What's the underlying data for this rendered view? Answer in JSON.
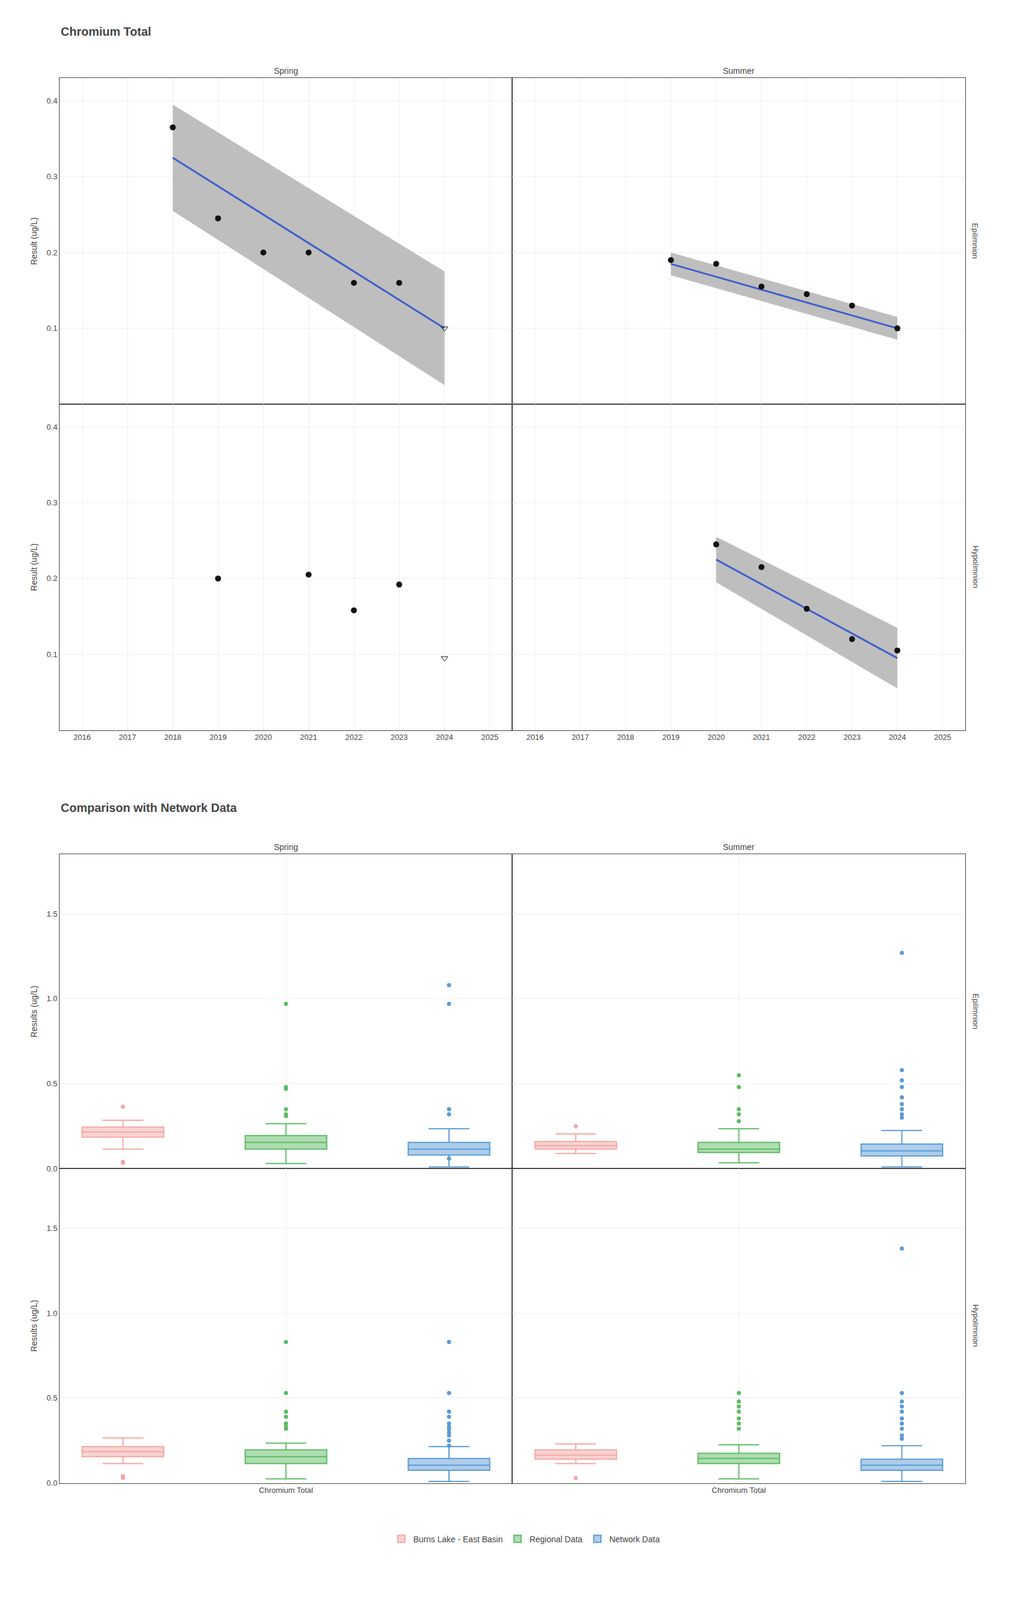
{
  "chart_data": [
    {
      "type": "scatter",
      "title": "Chromium Total",
      "y_label": "Result (ug/L)",
      "xlim": [
        2015.5,
        2025.5
      ],
      "xticks": [
        2016,
        2017,
        2018,
        2019,
        2020,
        2021,
        2022,
        2023,
        2024,
        2025
      ],
      "ylim": [
        0.0,
        0.43
      ],
      "yticks": [
        0.1,
        0.2,
        0.3,
        0.4
      ],
      "grid": true,
      "columns": [
        "Spring",
        "Summer"
      ],
      "rows": [
        "Epilimnion",
        "Hypolimnion"
      ],
      "panels": [
        {
          "series": [
            {
              "type": "band",
              "color": "#BEBEBE",
              "x": [
                2018,
                2024
              ],
              "upper": [
                0.395,
                0.175
              ],
              "lower": [
                0.255,
                0.025
              ]
            },
            {
              "type": "line",
              "color": "#3C5FCC",
              "x": [
                2018,
                2024
              ],
              "values": [
                0.325,
                0.1
              ]
            },
            {
              "type": "scatter",
              "marker": "circle",
              "color": "#111111",
              "x": [
                2018,
                2019,
                2020,
                2021,
                2022,
                2023
              ],
              "values": [
                0.365,
                0.245,
                0.2,
                0.2,
                0.16,
                0.16
              ]
            },
            {
              "type": "scatter",
              "marker": "triangle-down-open",
              "color": "#111111",
              "x": [
                2024
              ],
              "values": [
                0.1
              ]
            }
          ]
        },
        {
          "series": [
            {
              "type": "band",
              "color": "#BEBEBE",
              "x": [
                2019,
                2024
              ],
              "upper": [
                0.2,
                0.115
              ],
              "lower": [
                0.17,
                0.085
              ]
            },
            {
              "type": "line",
              "color": "#3C5FCC",
              "x": [
                2019,
                2024
              ],
              "values": [
                0.185,
                0.1
              ]
            },
            {
              "type": "scatter",
              "marker": "circle",
              "color": "#111111",
              "x": [
                2019,
                2020,
                2021,
                2022,
                2023,
                2024
              ],
              "values": [
                0.19,
                0.185,
                0.155,
                0.145,
                0.13,
                0.1
              ]
            }
          ]
        },
        {
          "series": [
            {
              "type": "scatter",
              "marker": "circle",
              "color": "#111111",
              "x": [
                2019,
                2021,
                2022,
                2023
              ],
              "values": [
                0.2,
                0.205,
                0.158,
                0.192
              ]
            },
            {
              "type": "scatter",
              "marker": "triangle-down-open",
              "color": "#111111",
              "x": [
                2024
              ],
              "values": [
                0.095
              ]
            }
          ]
        },
        {
          "series": [
            {
              "type": "band",
              "color": "#BEBEBE",
              "x": [
                2020,
                2024
              ],
              "upper": [
                0.255,
                0.135
              ],
              "lower": [
                0.195,
                0.055
              ]
            },
            {
              "type": "line",
              "color": "#3C5FCC",
              "x": [
                2020,
                2024
              ],
              "values": [
                0.225,
                0.095
              ]
            },
            {
              "type": "scatter",
              "marker": "circle",
              "color": "#111111",
              "x": [
                2020,
                2021,
                2022,
                2023,
                2024
              ],
              "values": [
                0.245,
                0.215,
                0.16,
                0.12,
                0.105
              ]
            }
          ]
        }
      ]
    },
    {
      "type": "box",
      "title": "Comparison with Network Data",
      "y_label": "Results (ug/L)",
      "categories": [
        "Chromium Total"
      ],
      "ylim": [
        0.0,
        1.85
      ],
      "yticks": [
        {
          "value": 0.0,
          "label": "0.0"
        },
        0.5,
        {
          "value": 1.0,
          "label": "1.0"
        },
        1.5
      ],
      "grid": true,
      "legend": "bottom",
      "columns": [
        "Spring",
        "Summer"
      ],
      "rows": [
        "Epilimnion",
        "Hypolimnion"
      ],
      "panels": [
        {
          "series": [
            {
              "name": "Burns Lake - East Basin",
              "color": "#F4A8A4",
              "median": 0.215,
              "q1": 0.185,
              "q3": 0.245,
              "whisker_low": 0.115,
              "whisker_high": 0.285,
              "outliers": [
                0.035,
                0.04,
                0.365
              ]
            },
            {
              "name": "Regional Data",
              "color": "#5DBB63",
              "median": 0.155,
              "q1": 0.115,
              "q3": 0.195,
              "whisker_low": 0.03,
              "whisker_high": 0.265,
              "outliers": [
                0.97,
                0.48,
                0.47,
                0.35,
                0.32,
                0.31
              ]
            },
            {
              "name": "Network Data",
              "color": "#5B9BD5",
              "median": 0.115,
              "q1": 0.08,
              "q3": 0.155,
              "whisker_low": 0.01,
              "whisker_high": 0.235,
              "outliers": [
                0.97,
                1.08,
                0.35,
                0.32,
                0.06
              ]
            }
          ]
        },
        {
          "series": [
            {
              "name": "Burns Lake - East Basin",
              "color": "#F4A8A4",
              "median": 0.135,
              "q1": 0.115,
              "q3": 0.16,
              "whisker_low": 0.09,
              "whisker_high": 0.205,
              "outliers": [
                0.25
              ]
            },
            {
              "name": "Regional Data",
              "color": "#5DBB63",
              "median": 0.115,
              "q1": 0.095,
              "q3": 0.155,
              "whisker_low": 0.035,
              "whisker_high": 0.235,
              "outliers": [
                0.55,
                0.48,
                0.35,
                0.32,
                0.28
              ]
            },
            {
              "name": "Network Data",
              "color": "#5B9BD5",
              "median": 0.105,
              "q1": 0.075,
              "q3": 0.145,
              "whisker_low": 0.01,
              "whisker_high": 0.225,
              "outliers": [
                1.27,
                0.58,
                0.52,
                0.48,
                0.42,
                0.38,
                0.35,
                0.32,
                0.3
              ]
            }
          ]
        },
        {
          "series": [
            {
              "name": "Burns Lake - East Basin",
              "color": "#F4A8A4",
              "median": 0.185,
              "q1": 0.155,
              "q3": 0.215,
              "whisker_low": 0.115,
              "whisker_high": 0.265,
              "outliers": [
                0.03,
                0.04
              ]
            },
            {
              "name": "Regional Data",
              "color": "#5DBB63",
              "median": 0.155,
              "q1": 0.115,
              "q3": 0.195,
              "whisker_low": 0.025,
              "whisker_high": 0.235,
              "outliers": [
                0.83,
                0.53,
                0.42,
                0.39,
                0.35,
                0.33,
                0.32
              ]
            },
            {
              "name": "Network Data",
              "color": "#5B9BD5",
              "median": 0.105,
              "q1": 0.075,
              "q3": 0.145,
              "whisker_low": 0.01,
              "whisker_high": 0.215,
              "outliers": [
                0.83,
                0.53,
                0.42,
                0.39,
                0.35,
                0.33,
                0.32,
                0.3,
                0.28,
                0.25,
                0.22
              ]
            }
          ]
        },
        {
          "series": [
            {
              "name": "Burns Lake - East Basin",
              "color": "#F4A8A4",
              "median": 0.165,
              "q1": 0.14,
              "q3": 0.195,
              "whisker_low": 0.115,
              "whisker_high": 0.23,
              "outliers": [
                0.03
              ]
            },
            {
              "name": "Regional Data",
              "color": "#5DBB63",
              "median": 0.145,
              "q1": 0.115,
              "q3": 0.175,
              "whisker_low": 0.025,
              "whisker_high": 0.225,
              "outliers": [
                0.53,
                0.48,
                0.45,
                0.42,
                0.38,
                0.35,
                0.32
              ]
            },
            {
              "name": "Network Data",
              "color": "#5B9BD5",
              "median": 0.105,
              "q1": 0.075,
              "q3": 0.14,
              "whisker_low": 0.01,
              "whisker_high": 0.22,
              "outliers": [
                1.38,
                0.53,
                0.48,
                0.45,
                0.42,
                0.38,
                0.35,
                0.32,
                0.28,
                0.26
              ]
            }
          ]
        }
      ]
    }
  ]
}
